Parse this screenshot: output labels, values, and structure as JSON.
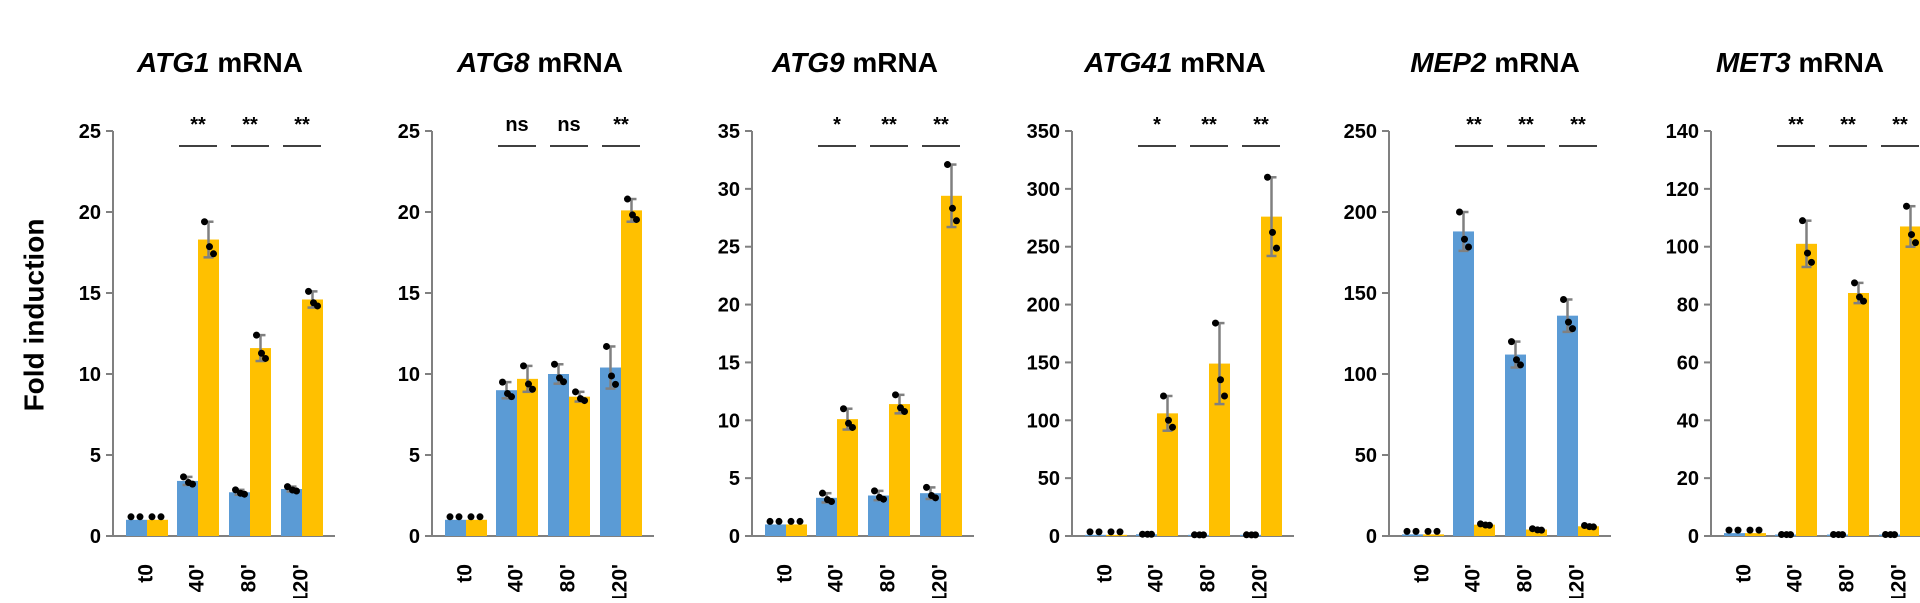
{
  "figure": {
    "ylabel": "Fold induction",
    "colors": {
      "series_a": "#5b9bd5",
      "series_b": "#ffc000",
      "error": "#808080",
      "axis": "#808080",
      "dot": "#000000"
    }
  },
  "chart_data": [
    {
      "type": "bar",
      "title_gene": "ATG1",
      "title_suffix": " mRNA",
      "ylim": [
        0,
        25
      ],
      "yticks": [
        0,
        5,
        10,
        15,
        20,
        25
      ],
      "categories": [
        "t0",
        "40'",
        "80'",
        "120'"
      ],
      "series": [
        {
          "values": [
            1.0,
            3.4,
            2.7,
            2.9
          ],
          "errors": [
            0,
            0.25,
            0.15,
            0.15
          ]
        },
        {
          "values": [
            1.0,
            18.3,
            11.6,
            14.6
          ],
          "errors": [
            0,
            1.1,
            0.8,
            0.5
          ]
        }
      ],
      "significance": [
        "",
        "**",
        "**",
        "**"
      ]
    },
    {
      "type": "bar",
      "title_gene": "ATG8",
      "title_suffix": " mRNA",
      "ylim": [
        0,
        25
      ],
      "yticks": [
        0,
        5,
        10,
        15,
        20,
        25
      ],
      "categories": [
        "t0",
        "40'",
        "80'",
        "120'"
      ],
      "series": [
        {
          "values": [
            1.0,
            9.0,
            10.0,
            10.4
          ],
          "errors": [
            0,
            0.5,
            0.6,
            1.3
          ]
        },
        {
          "values": [
            1.0,
            9.7,
            8.6,
            20.1
          ],
          "errors": [
            0,
            0.8,
            0.3,
            0.7
          ]
        }
      ],
      "significance": [
        "",
        "ns",
        "ns",
        "**"
      ]
    },
    {
      "type": "bar",
      "title_gene": "ATG9",
      "title_suffix": " mRNA",
      "ylim": [
        0,
        35
      ],
      "yticks": [
        0,
        5,
        10,
        15,
        20,
        25,
        30,
        35
      ],
      "categories": [
        "t0",
        "40'",
        "80'",
        "120'"
      ],
      "series": [
        {
          "values": [
            1.0,
            3.3,
            3.5,
            3.7
          ],
          "errors": [
            0,
            0.4,
            0.4,
            0.5
          ]
        },
        {
          "values": [
            1.0,
            10.1,
            11.4,
            29.4
          ],
          "errors": [
            0,
            0.9,
            0.8,
            2.7
          ]
        }
      ],
      "significance": [
        "",
        "*",
        "**",
        "**"
      ]
    },
    {
      "type": "bar",
      "title_gene": "ATG41",
      "title_suffix": " mRNA",
      "ylim": [
        0,
        350
      ],
      "yticks": [
        0,
        50,
        100,
        150,
        200,
        250,
        300,
        350
      ],
      "categories": [
        "t0",
        "40'",
        "80'",
        "120'"
      ],
      "series": [
        {
          "values": [
            1.0,
            1.5,
            1.0,
            1.0
          ],
          "errors": [
            0,
            0,
            0,
            0
          ]
        },
        {
          "values": [
            1.0,
            106,
            149,
            276
          ],
          "errors": [
            0,
            15,
            35,
            34
          ]
        }
      ],
      "significance": [
        "",
        "*",
        "**",
        "**"
      ]
    },
    {
      "type": "bar",
      "title_gene": "MEP2",
      "title_suffix": " mRNA",
      "ylim": [
        0,
        250
      ],
      "yticks": [
        0,
        50,
        100,
        150,
        200,
        250
      ],
      "categories": [
        "t0",
        "40'",
        "80'",
        "120'"
      ],
      "series": [
        {
          "values": [
            1.0,
            188,
            112,
            136
          ],
          "errors": [
            0,
            12,
            8,
            10
          ]
        },
        {
          "values": [
            1.0,
            7,
            4,
            6
          ],
          "errors": [
            0,
            0.5,
            0.5,
            0.5
          ]
        }
      ],
      "significance": [
        "",
        "**",
        "**",
        "**"
      ]
    },
    {
      "type": "bar",
      "title_gene": "MET3",
      "title_suffix": " mRNA",
      "ylim": [
        0,
        140
      ],
      "yticks": [
        0,
        20,
        40,
        60,
        80,
        100,
        120,
        140
      ],
      "categories": [
        "t0",
        "40'",
        "80'",
        "120'"
      ],
      "series": [
        {
          "values": [
            1.0,
            0.5,
            0.5,
            0.5
          ],
          "errors": [
            0,
            0,
            0,
            0
          ]
        },
        {
          "values": [
            1.0,
            101,
            84,
            107
          ],
          "errors": [
            0,
            8,
            3.5,
            7
          ]
        }
      ],
      "significance": [
        "",
        "**",
        "**",
        "**"
      ]
    }
  ]
}
